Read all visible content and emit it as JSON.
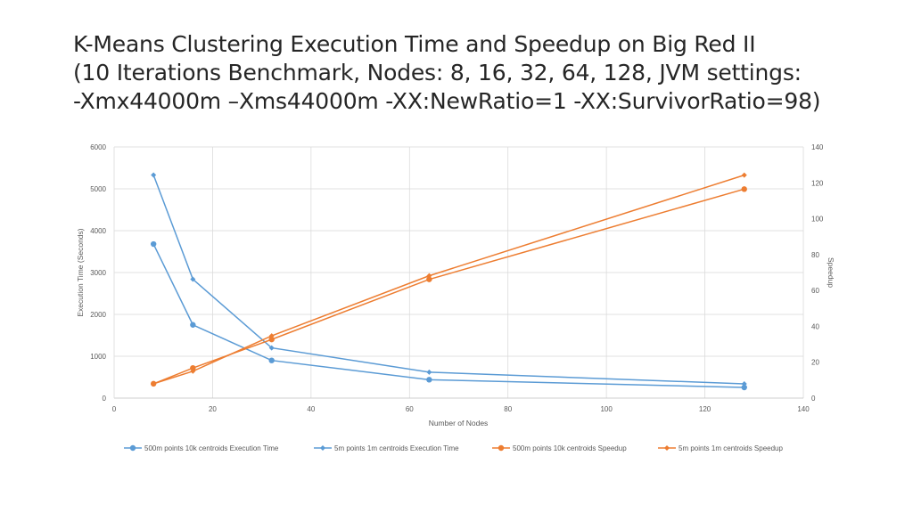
{
  "title": {
    "line1": "K-Means Clustering Execution Time and Speedup on Big Red II",
    "line2": "(10 Iterations Benchmark, Nodes: 8, 16, 32, 64, 128, JVM settings:",
    "line3": "-Xmx44000m –Xms44000m -XX:NewRatio=1 -XX:SurvivorRatio=98)"
  },
  "chart_data": {
    "type": "line",
    "xlabel": "Number of Nodes",
    "ylabel": "Execution Time (Seconds)",
    "y2label": "Speedup",
    "xlim": [
      0,
      140
    ],
    "ylim": [
      0,
      6000
    ],
    "y2lim": [
      0,
      140
    ],
    "xticks": [
      0,
      20,
      40,
      60,
      80,
      100,
      120,
      140
    ],
    "yticks": [
      0,
      1000,
      2000,
      3000,
      4000,
      5000,
      6000
    ],
    "y2ticks": [
      0,
      20,
      40,
      60,
      80,
      100,
      120,
      140
    ],
    "grid": true,
    "legend_position": "bottom",
    "x": [
      8,
      16,
      32,
      64,
      128
    ],
    "series": [
      {
        "name": "500m points 10k centroids Execution Time",
        "axis": "left",
        "marker": "circle",
        "color": "#5B9BD5",
        "values": [
          3680,
          1750,
          900,
          440,
          255
        ]
      },
      {
        "name": "5m points 1m centroids Execution Time",
        "axis": "left",
        "marker": "diamond",
        "color": "#5B9BD5",
        "values": [
          5330,
          2840,
          1200,
          620,
          340
        ]
      },
      {
        "name": "500m points 10k centroids Speedup",
        "axis": "right",
        "marker": "circle",
        "color": "#ED7D31",
        "values": [
          8,
          16.8,
          32.7,
          66.2,
          116.5
        ]
      },
      {
        "name": "5m points 1m centroids Speedup",
        "axis": "right",
        "marker": "diamond",
        "color": "#ED7D31",
        "values": [
          8,
          15,
          34.7,
          68.2,
          124.3
        ]
      }
    ]
  }
}
